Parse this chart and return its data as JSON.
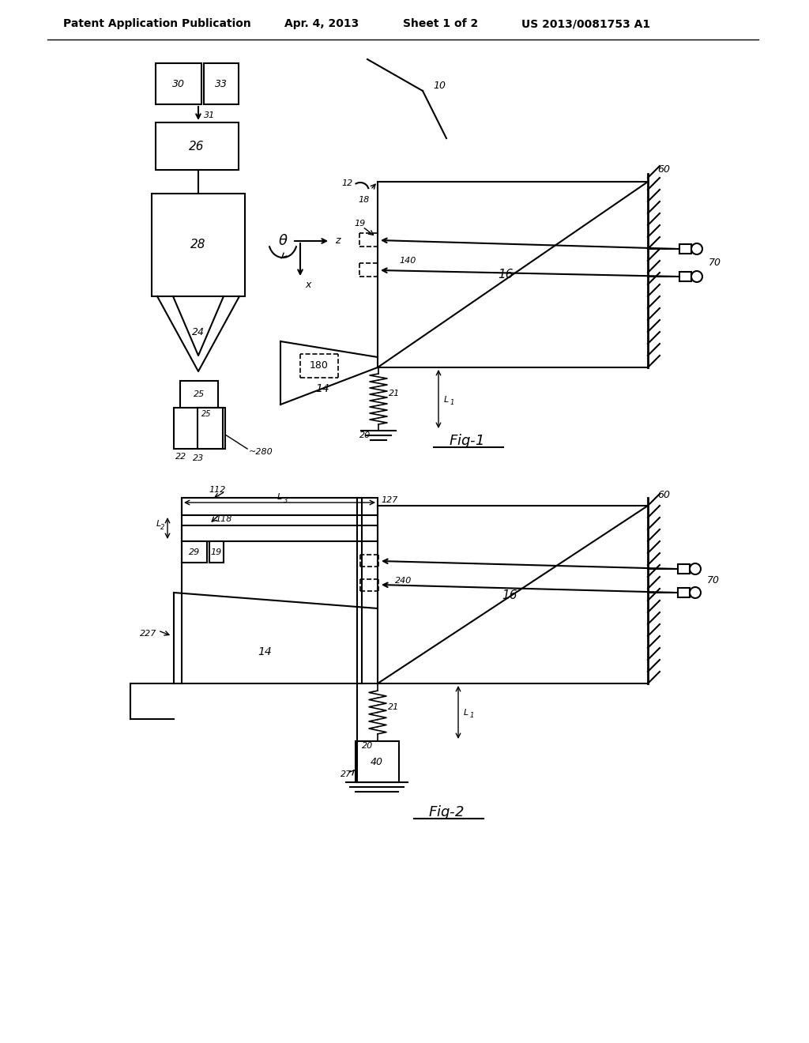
{
  "bg_color": "#ffffff",
  "line_color": "#000000",
  "header_text": "Patent Application Publication",
  "header_date": "Apr. 4, 2013",
  "header_sheet": "Sheet 1 of 2",
  "header_patent": "US 2013/0081753 A1",
  "fig1_label": "Fig-1",
  "fig2_label": "Fig-2"
}
